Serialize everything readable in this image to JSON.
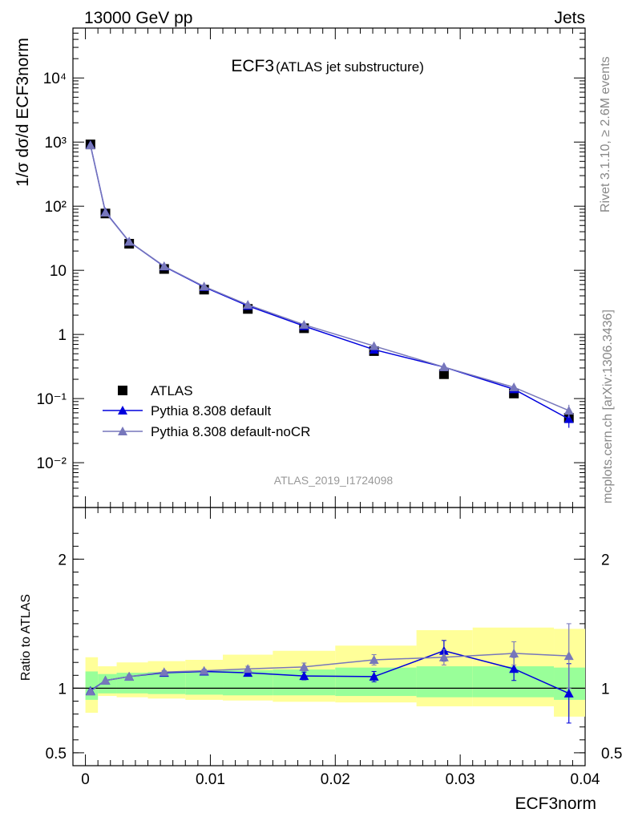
{
  "header": {
    "left_label": "13000 GeV pp",
    "right_label": "Jets",
    "right_side_label": "Rivet 3.1.10, ≥ 2.6M events",
    "right_side_label2": "mcplots.cern.ch [arXiv:1306.3436]"
  },
  "chart_data": [
    {
      "type": "line",
      "panel": "main",
      "title": "ECF3",
      "subtitle": "(ATLAS jet substructure)",
      "analysis_label": "ATLAS_2019_I1724098",
      "ylabel": "1/σ dσ/d ECF3norm",
      "yscale": "log",
      "ylim": [
        0.002,
        60000
      ],
      "xlim": [
        -0.001,
        0.04
      ],
      "y_tick_labels": [
        "10⁻²",
        "10⁻¹",
        "1",
        "10",
        "10²",
        "10³",
        "10⁴"
      ],
      "legend_position": "lower-left",
      "x": [
        0.0004,
        0.0016,
        0.0035,
        0.0063,
        0.0095,
        0.013,
        0.0175,
        0.0231,
        0.0287,
        0.0343,
        0.0387
      ],
      "series": [
        {
          "name": "ATLAS",
          "color": "#000000",
          "marker": "square",
          "values": [
            920,
            77,
            26,
            10.5,
            5.0,
            2.5,
            1.25,
            0.55,
            0.24,
            0.12,
            0.05
          ]
        },
        {
          "name": "Pythia 8.308 default",
          "color": "#0000dd",
          "marker": "triangle",
          "values": [
            900,
            81,
            28,
            11.5,
            5.5,
            2.8,
            1.35,
            0.58,
            0.31,
            0.14,
            0.048
          ],
          "errors": [
            0,
            0,
            0,
            0,
            0,
            0,
            0,
            0,
            0.02,
            0.015,
            0.013
          ]
        },
        {
          "name": "Pythia 8.308 default-noCR",
          "color": "#7777bb",
          "marker": "triangle",
          "values": [
            895,
            80,
            28,
            11.6,
            5.6,
            2.9,
            1.42,
            0.66,
            0.31,
            0.15,
            0.065
          ],
          "errors": [
            0,
            0,
            0,
            0,
            0,
            0,
            0,
            0,
            0.02,
            0.015,
            0.015
          ]
        }
      ]
    },
    {
      "type": "line",
      "panel": "ratio",
      "ylabel": "Ratio to ATLAS",
      "xlabel": "ECF3norm",
      "ylim": [
        0.4,
        2.4
      ],
      "xlim": [
        -0.001,
        0.04
      ],
      "y_tick_labels": [
        "0.5",
        "1",
        "2"
      ],
      "x_tick_labels": [
        "0",
        "0.01",
        "0.02",
        "0.03",
        "0.04"
      ],
      "reference_line": 1,
      "bands": {
        "bins": [
          0.0,
          0.001,
          0.0025,
          0.005,
          0.008,
          0.011,
          0.015,
          0.02,
          0.0265,
          0.031,
          0.0375,
          0.04
        ],
        "stat_lo": [
          0.91,
          0.96,
          0.96,
          0.955,
          0.95,
          0.945,
          0.945,
          0.94,
          0.93,
          0.93,
          0.91
        ],
        "stat_hi": [
          1.13,
          1.11,
          1.12,
          1.125,
          1.135,
          1.14,
          1.145,
          1.16,
          1.17,
          1.17,
          1.16
        ],
        "total_lo": [
          0.81,
          0.94,
          0.93,
          0.92,
          0.91,
          0.905,
          0.895,
          0.89,
          0.86,
          0.86,
          0.78
        ],
        "total_hi": [
          1.24,
          1.17,
          1.2,
          1.21,
          1.22,
          1.26,
          1.29,
          1.33,
          1.45,
          1.47,
          1.46
        ],
        "stat_color": "#99ff99",
        "total_color": "#ffff99"
      },
      "series": [
        {
          "name": "Pythia 8.308 default",
          "color": "#0000dd",
          "marker": "triangle",
          "values": [
            0.98,
            1.06,
            1.09,
            1.12,
            1.13,
            1.12,
            1.095,
            1.09,
            1.29,
            1.15,
            0.96
          ],
          "errors": [
            0,
            0,
            0.012,
            0.012,
            0.012,
            0.02,
            0.03,
            0.04,
            0.08,
            0.09,
            0.23
          ]
        },
        {
          "name": "Pythia 8.308 default-noCR",
          "color": "#7777bb",
          "marker": "triangle",
          "values": [
            0.975,
            1.06,
            1.09,
            1.125,
            1.135,
            1.15,
            1.165,
            1.22,
            1.24,
            1.27,
            1.25
          ],
          "errors": [
            0,
            0,
            0.012,
            0.012,
            0.012,
            0.02,
            0.03,
            0.04,
            0.06,
            0.09,
            0.25
          ]
        }
      ]
    }
  ]
}
